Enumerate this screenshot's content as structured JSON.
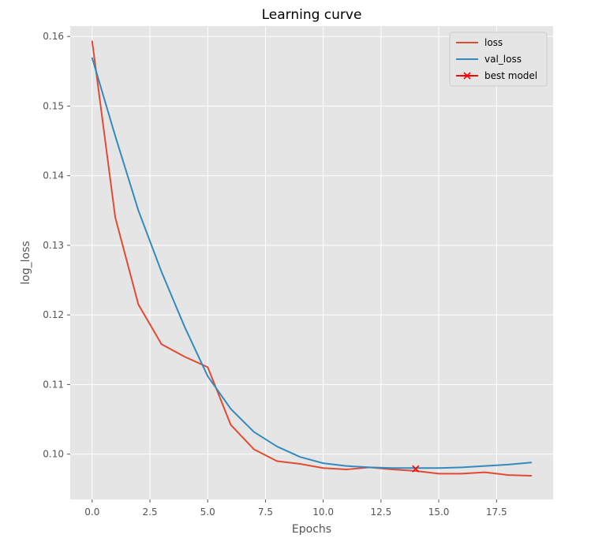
{
  "chart_data": {
    "type": "line",
    "title": "Learning curve",
    "xlabel": "Epochs",
    "ylabel": "log_loss",
    "xlim": [
      -0.95,
      19.95
    ],
    "ylim": [
      0.0935,
      0.1615
    ],
    "xticks": [
      0.0,
      2.5,
      5.0,
      7.5,
      10.0,
      12.5,
      15.0,
      17.5
    ],
    "xtick_labels": [
      "0.0",
      "2.5",
      "5.0",
      "7.5",
      "10.0",
      "12.5",
      "15.0",
      "17.5"
    ],
    "yticks": [
      0.1,
      0.11,
      0.12,
      0.13,
      0.14,
      0.15,
      0.16
    ],
    "ytick_labels": [
      "0.10",
      "0.11",
      "0.12",
      "0.13",
      "0.14",
      "0.15",
      "0.16"
    ],
    "grid": true,
    "legend_position": "top-right",
    "x": [
      0,
      1,
      2,
      3,
      4,
      5,
      6,
      7,
      8,
      9,
      10,
      11,
      12,
      13,
      14,
      15,
      16,
      17,
      18,
      19
    ],
    "series": [
      {
        "name": "loss",
        "color": "#e24a33",
        "values": [
          0.1593,
          0.134,
          0.1215,
          0.1158,
          0.114,
          0.1125,
          0.1042,
          0.1007,
          0.099,
          0.0986,
          0.098,
          0.0978,
          0.0981,
          0.0978,
          0.0976,
          0.0972,
          0.0972,
          0.0974,
          0.097,
          0.0969
        ]
      },
      {
        "name": "val_loss",
        "color": "#348abd",
        "values": [
          0.1569,
          0.1457,
          0.135,
          0.1262,
          0.1183,
          0.1112,
          0.1065,
          0.1032,
          0.1011,
          0.0996,
          0.0987,
          0.0983,
          0.0981,
          0.098,
          0.098,
          0.098,
          0.0981,
          0.0983,
          0.0985,
          0.0988
        ]
      }
    ],
    "markers": [
      {
        "name": "best model",
        "color": "#ff0000",
        "symbol": "x",
        "x": 14,
        "y": 0.0979
      }
    ]
  }
}
